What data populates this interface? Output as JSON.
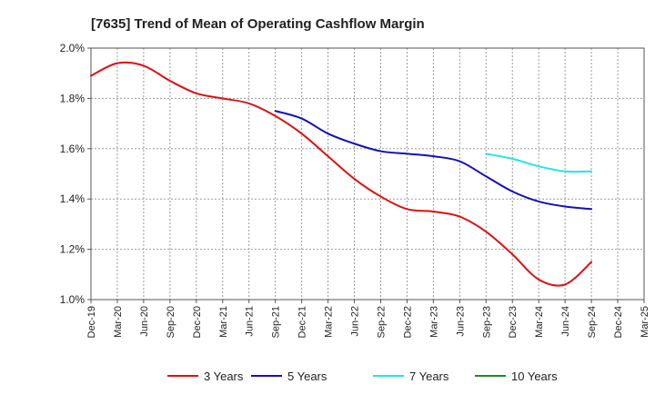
{
  "chart_data": {
    "type": "line",
    "title": "[7635]  Trend of Mean of Operating Cashflow Margin",
    "xlabel": "",
    "ylabel": "",
    "grid": true,
    "ylim": [
      1.0,
      2.0
    ],
    "y_ticks": [
      1.0,
      1.2,
      1.4,
      1.6,
      1.8,
      2.0
    ],
    "y_tick_labels": [
      "1.0%",
      "1.2%",
      "1.4%",
      "1.6%",
      "1.8%",
      "2.0%"
    ],
    "x_tick_labels": [
      "Dec-19",
      "Mar-20",
      "Jun-20",
      "Sep-20",
      "Dec-20",
      "Mar-21",
      "Jun-21",
      "Sep-21",
      "Dec-21",
      "Mar-22",
      "Jun-22",
      "Sep-22",
      "Dec-22",
      "Mar-23",
      "Jun-23",
      "Sep-23",
      "Dec-23",
      "Mar-24",
      "Jun-24",
      "Sep-24",
      "Dec-24",
      "Mar-25"
    ],
    "legend_position": "bottom",
    "series": [
      {
        "name": "3 Years",
        "color": "#dd1111",
        "x": [
          "Dec-19",
          "Mar-20",
          "Jun-20",
          "Sep-20",
          "Dec-20",
          "Mar-21",
          "Jun-21",
          "Sep-21",
          "Dec-21",
          "Mar-22",
          "Jun-22",
          "Sep-22",
          "Dec-22",
          "Mar-23",
          "Jun-23",
          "Sep-23",
          "Dec-23",
          "Mar-24",
          "Jun-24",
          "Sep-24"
        ],
        "values": [
          1.89,
          1.94,
          1.93,
          1.87,
          1.82,
          1.8,
          1.78,
          1.73,
          1.66,
          1.57,
          1.48,
          1.41,
          1.36,
          1.35,
          1.33,
          1.27,
          1.18,
          1.08,
          1.06,
          1.15
        ]
      },
      {
        "name": "5 Years",
        "color": "#1111bb",
        "x": [
          "Sep-21",
          "Dec-21",
          "Mar-22",
          "Jun-22",
          "Sep-22",
          "Dec-22",
          "Mar-23",
          "Jun-23",
          "Sep-23",
          "Dec-23",
          "Mar-24",
          "Jun-24",
          "Sep-24"
        ],
        "values": [
          1.75,
          1.72,
          1.66,
          1.62,
          1.59,
          1.58,
          1.57,
          1.55,
          1.49,
          1.43,
          1.39,
          1.37,
          1.36
        ]
      },
      {
        "name": "7 Years",
        "color": "#22e5e5",
        "x": [
          "Sep-23",
          "Dec-23",
          "Mar-24",
          "Jun-24",
          "Sep-24"
        ],
        "values": [
          1.58,
          1.56,
          1.53,
          1.51,
          1.51
        ]
      },
      {
        "name": "10 Years",
        "color": "#228822",
        "x": [],
        "values": []
      }
    ]
  }
}
